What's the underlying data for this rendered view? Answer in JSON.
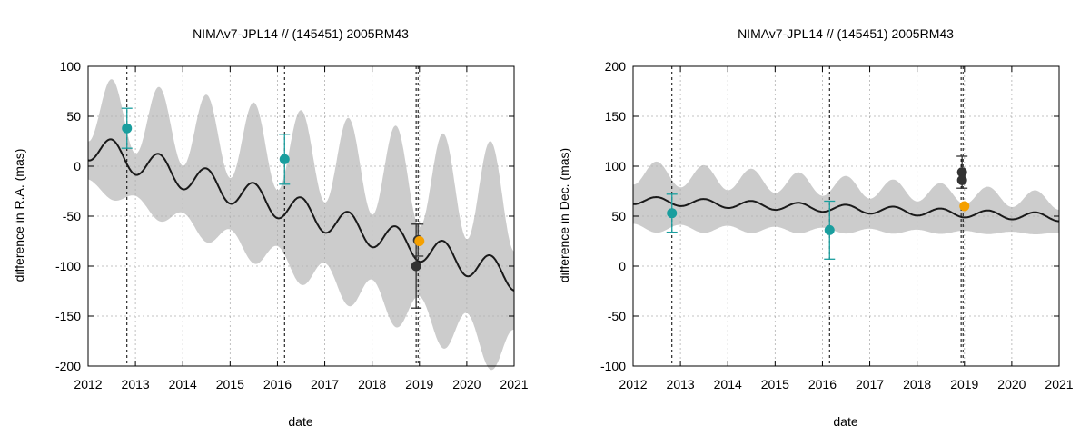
{
  "colors": {
    "band": "#cccccc",
    "line": "#1a1a1a",
    "teal": "#1a9e9e",
    "dark": "#333333",
    "orange": "#f5a000",
    "grid": "#b0b0b0"
  },
  "chart_data": [
    {
      "type": "line",
      "title": "NIMAv7-JPL14 // (145451) 2005RM43",
      "xlabel": "date",
      "ylabel": "difference in R.A. (mas)",
      "xlim": [
        2012,
        2021
      ],
      "ylim": [
        -200,
        100
      ],
      "xticks": [
        2012,
        2013,
        2014,
        2015,
        2016,
        2017,
        2018,
        2019,
        2020,
        2021
      ],
      "yticks": [
        100,
        50,
        0,
        -50,
        -100,
        -150,
        -200
      ],
      "grid": true,
      "vlines": [
        2012.82,
        2016.15,
        2018.93,
        2018.97
      ],
      "mean": {
        "start": 20,
        "trend": -14.5,
        "amplitude": 14,
        "period": 1.0,
        "phase": 2012.5
      },
      "band": {
        "base": 38,
        "growth": 4.5,
        "wobble": 0.5,
        "period": 1.0
      },
      "points": [
        {
          "series": "teal",
          "x": 2012.82,
          "y": 38,
          "err": 20
        },
        {
          "series": "teal",
          "x": 2016.15,
          "y": 7,
          "err": 25
        },
        {
          "series": "dark",
          "x": 2018.93,
          "y": -100,
          "err": 42
        },
        {
          "series": "dark",
          "x": 2018.97,
          "y": -74,
          "err": 16
        },
        {
          "series": "orange",
          "x": 2019.0,
          "y": -75,
          "err": 0
        }
      ]
    },
    {
      "type": "line",
      "title": "NIMAv7-JPL14 // (145451) 2005RM43",
      "xlabel": "date",
      "ylabel": "difference in Dec. (mas)",
      "xlim": [
        2012,
        2021
      ],
      "ylim": [
        -100,
        200
      ],
      "xticks": [
        2012,
        2013,
        2014,
        2015,
        2016,
        2017,
        2018,
        2019,
        2020,
        2021
      ],
      "yticks": [
        200,
        150,
        100,
        50,
        0,
        -50,
        -100
      ],
      "grid": true,
      "vlines": [
        2012.82,
        2016.15,
        2018.93,
        2018.97
      ],
      "mean": {
        "start": 66,
        "trend": -1.9,
        "amplitude": 4,
        "period": 1.0,
        "phase": 2012.5
      },
      "band": {
        "base": 28,
        "growth": -1.3,
        "wobble": 0.3,
        "period": 1.0
      },
      "points": [
        {
          "series": "teal",
          "x": 2012.82,
          "y": 53,
          "err": 19
        },
        {
          "series": "teal",
          "x": 2016.15,
          "y": 36,
          "err": 29
        },
        {
          "series": "dark",
          "x": 2018.95,
          "y": 94,
          "err": 16
        },
        {
          "series": "dark",
          "x": 2018.95,
          "y": 86,
          "err": 0
        },
        {
          "series": "orange",
          "x": 2019.0,
          "y": 60,
          "err": 0
        }
      ]
    }
  ]
}
